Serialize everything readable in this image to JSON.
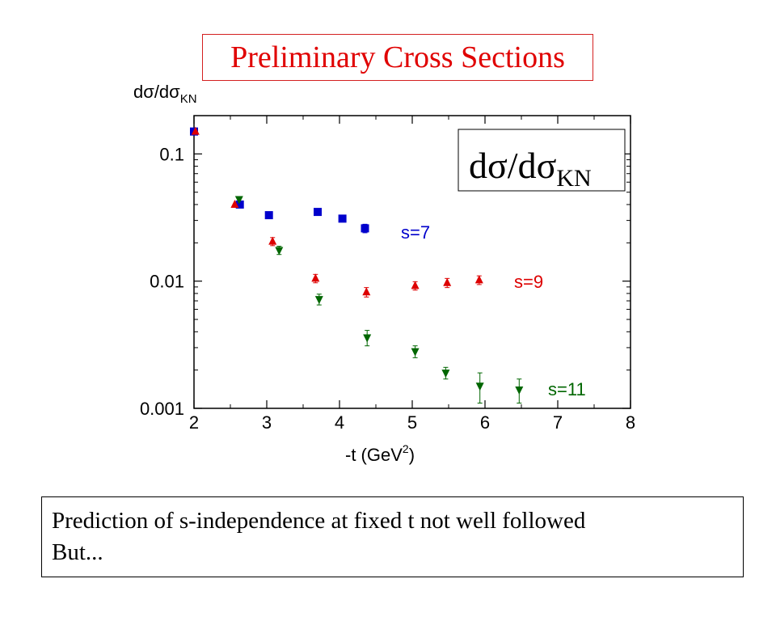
{
  "header": {
    "title": "Preliminary Cross Sections"
  },
  "caption": {
    "line1": "Prediction of s-independence at fixed t not well followed",
    "line2": "But..."
  },
  "colors": {
    "s7": "#0000cc",
    "s9": "#dd0000",
    "s11": "#006600",
    "title": "#e00000"
  },
  "chart_data": {
    "type": "scatter",
    "title": "",
    "xlabel": "-t (GeV²)",
    "xlabel_base": "-t (GeV",
    "xlabel_sup": "2",
    "xlabel_end": ")",
    "ylabel_main": "dσ/dσ",
    "ylabel_sub": "KN",
    "inset_label_main": "dσ/dσ",
    "inset_label_sub": "KN",
    "xlim": [
      2,
      8
    ],
    "ylim": [
      0.001,
      0.2
    ],
    "yscale": "log",
    "grid": false,
    "xticks": [
      2,
      3,
      4,
      5,
      6,
      7,
      8
    ],
    "xtick_labels": [
      "2",
      "3",
      "4",
      "5",
      "6",
      "7",
      "8"
    ],
    "yticks": [
      0.001,
      0.01,
      0.1
    ],
    "ytick_labels": [
      "0.001",
      "0.01",
      "0.1"
    ],
    "series": [
      {
        "name": "s=7",
        "marker": "square",
        "color": "#0000cc",
        "points": [
          {
            "x": 2.0,
            "y": 0.15
          },
          {
            "x": 2.63,
            "y": 0.04
          },
          {
            "x": 3.03,
            "y": 0.033
          },
          {
            "x": 3.7,
            "y": 0.035
          },
          {
            "x": 4.04,
            "y": 0.031
          },
          {
            "x": 4.35,
            "y": 0.026,
            "err": 0.002
          }
        ]
      },
      {
        "name": "s=9",
        "marker": "triangle-up",
        "color": "#dd0000",
        "points": [
          {
            "x": 2.02,
            "y": 0.15
          },
          {
            "x": 2.56,
            "y": 0.04
          },
          {
            "x": 3.08,
            "y": 0.0205,
            "err": 0.0015
          },
          {
            "x": 3.67,
            "y": 0.0105,
            "err": 0.0008
          },
          {
            "x": 4.37,
            "y": 0.0082,
            "err": 0.0007
          },
          {
            "x": 5.04,
            "y": 0.0092,
            "err": 0.0007
          },
          {
            "x": 5.48,
            "y": 0.0097,
            "err": 0.0008
          },
          {
            "x": 5.92,
            "y": 0.0102,
            "err": 0.0008
          }
        ]
      },
      {
        "name": "s=11",
        "marker": "triangle-down",
        "color": "#006600",
        "points": [
          {
            "x": 2.62,
            "y": 0.044
          },
          {
            "x": 3.17,
            "y": 0.0175,
            "err": 0.0013
          },
          {
            "x": 3.72,
            "y": 0.0072,
            "err": 0.0007
          },
          {
            "x": 4.38,
            "y": 0.0036,
            "err": 0.0005
          },
          {
            "x": 5.04,
            "y": 0.0028,
            "err": 0.0003
          },
          {
            "x": 5.46,
            "y": 0.0019,
            "err": 0.0002
          },
          {
            "x": 5.93,
            "y": 0.0015,
            "err": 0.0004
          },
          {
            "x": 6.47,
            "y": 0.0014,
            "err": 0.0003
          }
        ]
      }
    ]
  }
}
